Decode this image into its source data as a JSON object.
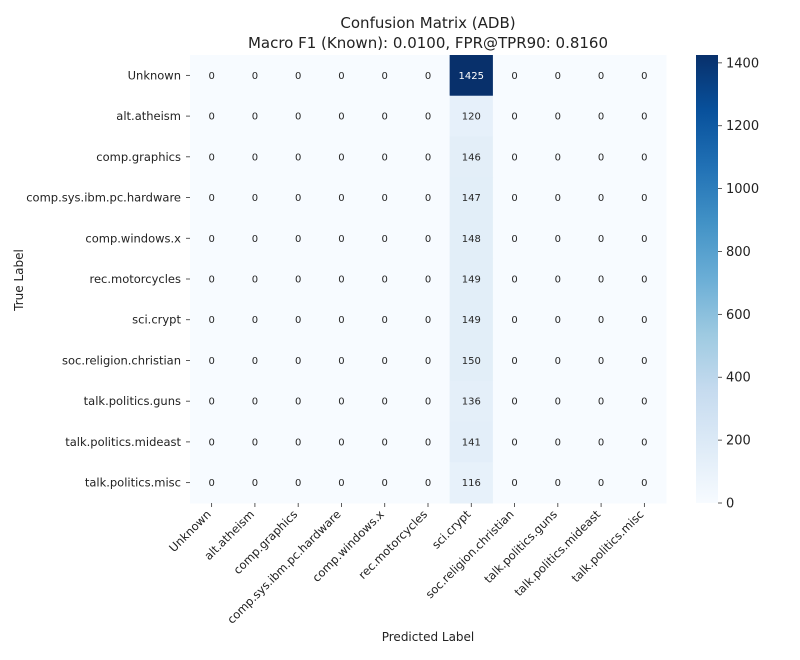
{
  "chart_data": {
    "type": "heatmap",
    "title": "Confusion Matrix (ADB)",
    "subtitle": "Macro F1 (Known): 0.0100, FPR@TPR90: 0.8160",
    "xlabel": "Predicted Label",
    "ylabel": "True Label",
    "x_categories": [
      "Unknown",
      "alt.atheism",
      "comp.graphics",
      "comp.sys.ibm.pc.hardware",
      "comp.windows.x",
      "rec.motorcycles",
      "sci.crypt",
      "soc.religion.christian",
      "talk.politics.guns",
      "talk.politics.mideast",
      "talk.politics.misc"
    ],
    "y_categories": [
      "Unknown",
      "alt.atheism",
      "comp.graphics",
      "comp.sys.ibm.pc.hardware",
      "comp.windows.x",
      "rec.motorcycles",
      "sci.crypt",
      "soc.religion.christian",
      "talk.politics.guns",
      "talk.politics.mideast",
      "talk.politics.misc"
    ],
    "values": [
      [
        0,
        0,
        0,
        0,
        0,
        0,
        1425,
        0,
        0,
        0,
        0
      ],
      [
        0,
        0,
        0,
        0,
        0,
        0,
        120,
        0,
        0,
        0,
        0
      ],
      [
        0,
        0,
        0,
        0,
        0,
        0,
        146,
        0,
        0,
        0,
        0
      ],
      [
        0,
        0,
        0,
        0,
        0,
        0,
        147,
        0,
        0,
        0,
        0
      ],
      [
        0,
        0,
        0,
        0,
        0,
        0,
        148,
        0,
        0,
        0,
        0
      ],
      [
        0,
        0,
        0,
        0,
        0,
        0,
        149,
        0,
        0,
        0,
        0
      ],
      [
        0,
        0,
        0,
        0,
        0,
        0,
        149,
        0,
        0,
        0,
        0
      ],
      [
        0,
        0,
        0,
        0,
        0,
        0,
        150,
        0,
        0,
        0,
        0
      ],
      [
        0,
        0,
        0,
        0,
        0,
        0,
        136,
        0,
        0,
        0,
        0
      ],
      [
        0,
        0,
        0,
        0,
        0,
        0,
        141,
        0,
        0,
        0,
        0
      ],
      [
        0,
        0,
        0,
        0,
        0,
        0,
        116,
        0,
        0,
        0,
        0
      ]
    ],
    "colormap": "Blues",
    "colorbar": {
      "min": 0,
      "max": 1425,
      "ticks": [
        0,
        200,
        400,
        600,
        800,
        1000,
        1200,
        1400
      ]
    },
    "grid": false,
    "colorbar_placement": "right"
  }
}
